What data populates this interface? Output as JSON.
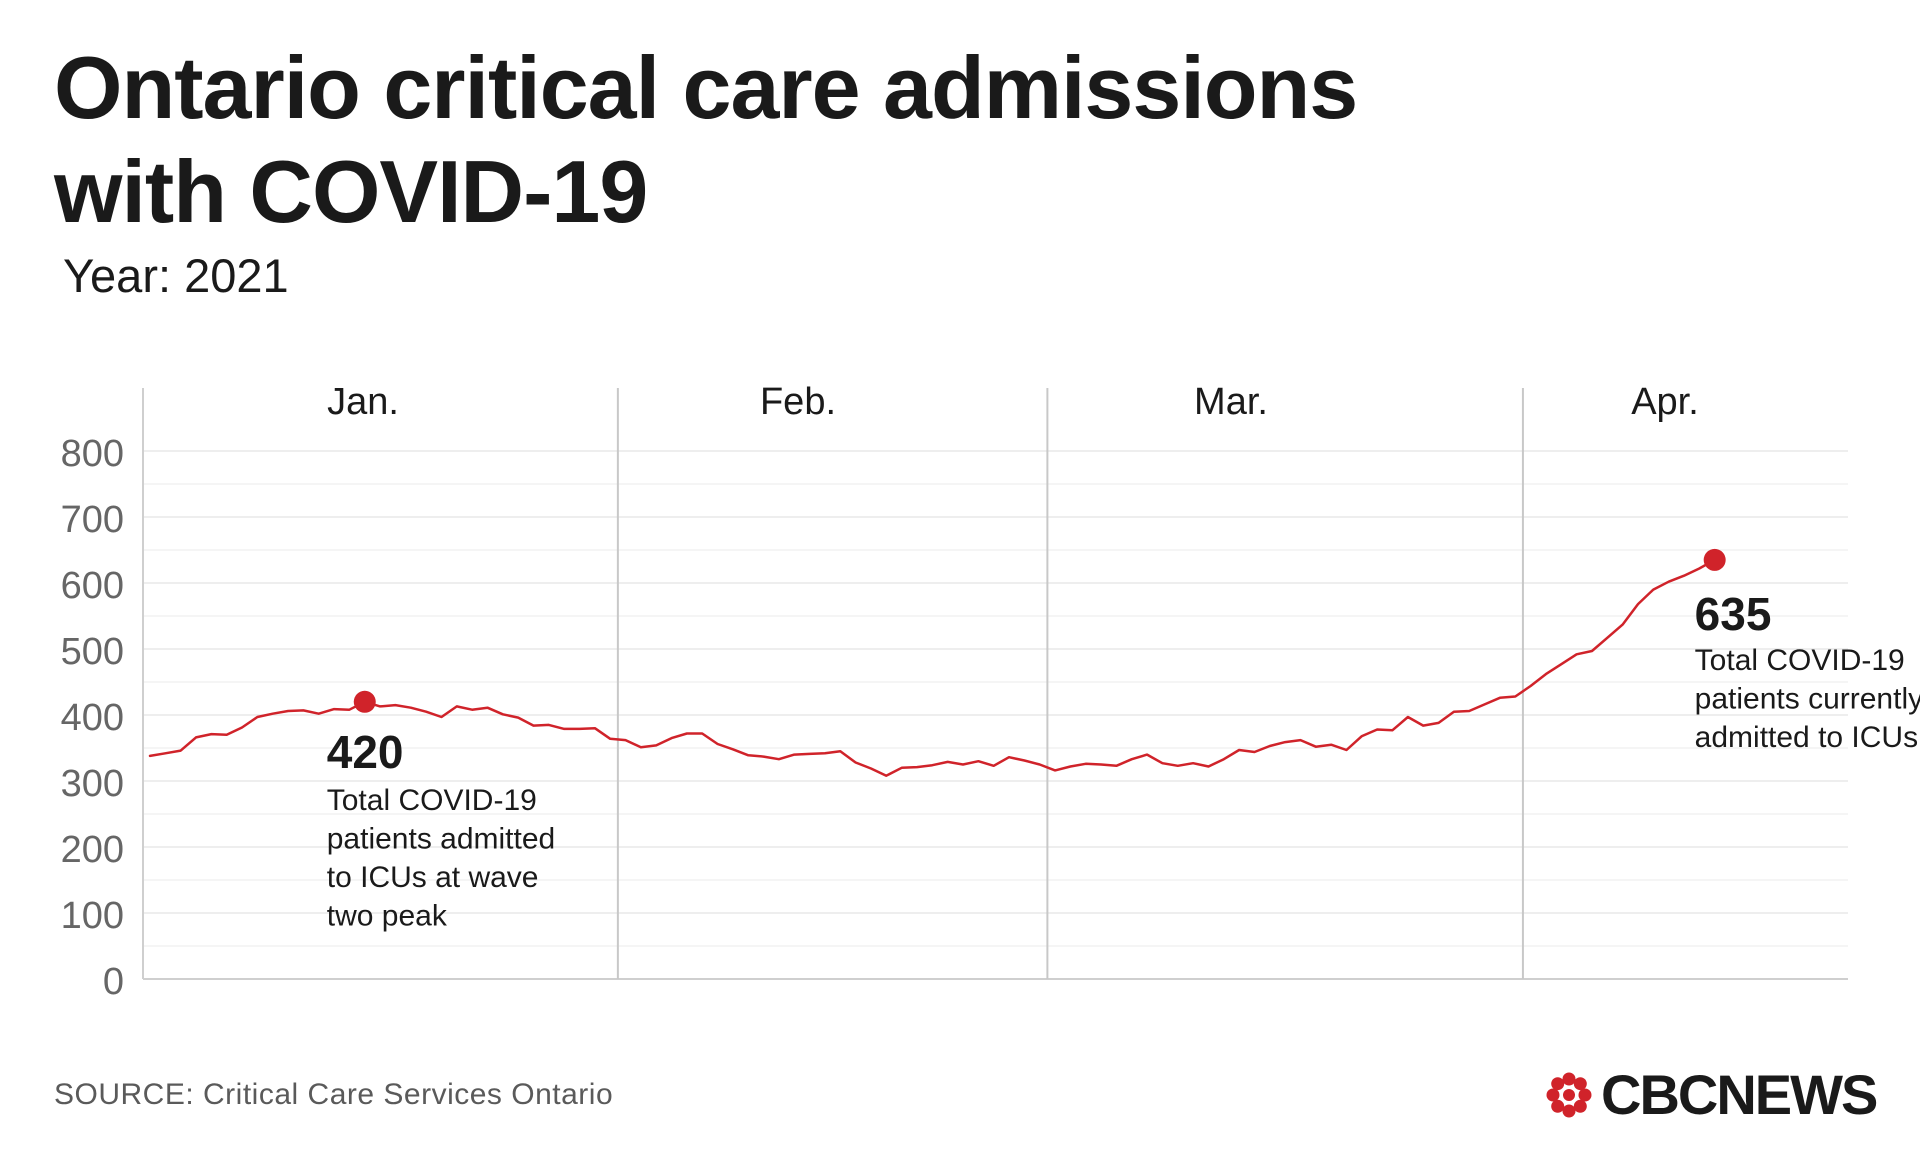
{
  "title_line1": "Ontario critical care admissions",
  "title_line2": "with COVID-19",
  "subtitle": "Year: 2021",
  "source": "SOURCE:  Critical Care Services Ontario",
  "logo_text": "CBCNEWS",
  "colors": {
    "line": "#d0232a",
    "grid": "#e8e8e8",
    "divider": "#c8c8c8",
    "axis": "#cfcfcf",
    "tick_text": "#666666",
    "text": "#1a1a1a",
    "logo_red": "#d0232a"
  },
  "chart_data": {
    "type": "line",
    "title": "Ontario critical care admissions with COVID-19",
    "subtitle": "Year: 2021",
    "xlabel": "",
    "ylabel": "",
    "ylim": [
      0,
      800
    ],
    "y_ticks": [
      0,
      100,
      200,
      300,
      400,
      500,
      600,
      700,
      800
    ],
    "grid": "horizontal",
    "months": [
      {
        "label": "Jan.",
        "start_day": 1,
        "days": 31
      },
      {
        "label": "Feb.",
        "start_day": 32,
        "days": 28
      },
      {
        "label": "Mar.",
        "start_day": 60,
        "days": 31
      },
      {
        "label": "Apr.",
        "start_day": 91,
        "days": 14
      }
    ],
    "series": [
      {
        "start": "2021-01-01",
        "values": [
          338,
          342,
          346,
          366,
          371,
          370,
          381,
          397,
          402,
          406,
          407,
          402,
          409,
          408,
          420,
          413,
          415,
          411,
          405,
          397,
          413,
          408,
          411,
          401,
          396,
          384,
          385,
          379,
          379,
          380,
          364,
          362,
          351,
          354,
          365,
          372,
          372,
          356,
          348,
          339,
          337,
          333,
          340,
          341,
          342,
          345,
          328,
          319,
          308,
          320,
          321,
          324,
          329,
          325,
          330,
          323,
          336,
          331,
          325,
          316,
          322,
          326,
          325,
          323,
          333,
          340,
          327,
          323,
          327,
          322,
          333,
          347,
          344,
          353,
          359,
          362,
          352,
          355,
          347,
          368,
          378,
          377,
          397,
          384,
          388,
          405,
          406,
          416,
          426,
          428,
          444,
          462,
          477,
          492,
          497,
          517,
          537,
          568,
          590,
          602,
          611,
          622,
          635
        ]
      }
    ],
    "annotations": [
      {
        "date": "2021-01-15",
        "value": "420",
        "text_lines": [
          "Total COVID-19",
          "patients admitted",
          "to ICUs at wave",
          "two peak"
        ]
      },
      {
        "date": "2021-04-13",
        "value": "635",
        "text_lines": [
          "Total COVID-19",
          "patients currently",
          "admitted to ICUs"
        ]
      }
    ]
  }
}
